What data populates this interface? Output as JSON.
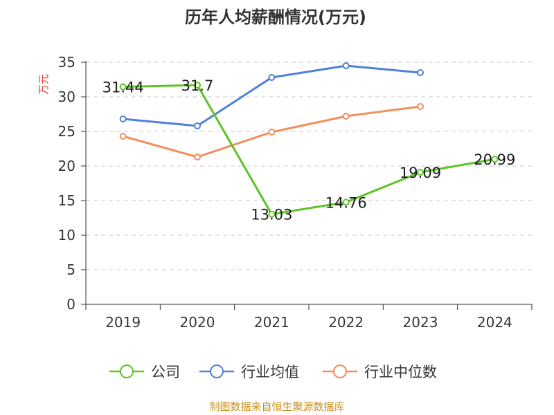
{
  "chart_data": {
    "type": "line",
    "title": "历年人均薪酬情况(万元)",
    "ylabel": "万元",
    "xlabel": "",
    "categories": [
      "2019",
      "2020",
      "2021",
      "2022",
      "2023",
      "2024"
    ],
    "ylim": [
      0,
      35
    ],
    "yticks": [
      0,
      5,
      10,
      15,
      20,
      25,
      30,
      35
    ],
    "grid": true,
    "legend_position": "bottom",
    "series": [
      {
        "name": "公司",
        "color": "#5cc324",
        "values": [
          31.44,
          31.7,
          13.03,
          14.76,
          19.09,
          20.99
        ],
        "labels": [
          "31.44",
          "31.7",
          "13.03",
          "14.76",
          "19.09",
          "20.99"
        ]
      },
      {
        "name": "行业均值",
        "color": "#4e80da",
        "values": [
          26.8,
          25.8,
          32.8,
          34.5,
          33.5,
          null
        ]
      },
      {
        "name": "行业中位数",
        "color": "#f48d5a",
        "values": [
          24.3,
          21.3,
          24.9,
          27.2,
          28.6,
          null
        ]
      }
    ],
    "source": "制图数据来自恒生聚源数据库"
  }
}
